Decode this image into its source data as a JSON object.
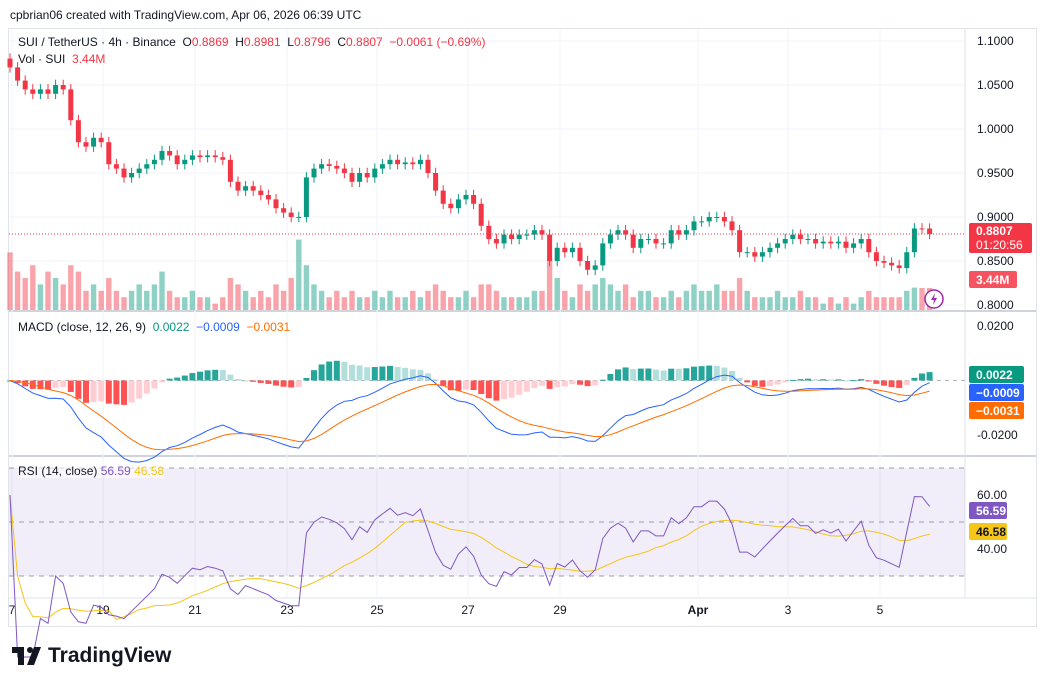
{
  "header": {
    "credit": "cpbrian06 created with TradingView.com, Apr 06, 2026 06:39 UTC"
  },
  "legend": {
    "symbol": "SUI / TetherUS · 4h · Binance",
    "o_label": "O",
    "o": "0.8869",
    "h_label": "H",
    "h": "0.8981",
    "l_label": "L",
    "l": "0.8796",
    "c_label": "C",
    "c": "0.8807",
    "change": "−0.0061 (−0.69%)",
    "vol_label": "Vol · SUI",
    "vol": "3.44M",
    "macd_label": "MACD (close, 12, 26, 9)",
    "macd_hist": "0.0022",
    "macd_line": "−0.0009",
    "macd_signal": "−0.0031",
    "rsi_label": "RSI (14, close)",
    "rsi": "56.59",
    "rsi_ma": "46.58"
  },
  "badges": {
    "price": "0.8807",
    "countdown": "01:20:56",
    "vol": "3.44M",
    "macd_hist": "0.0022",
    "macd_line": "−0.0009",
    "macd_signal": "−0.0031",
    "rsi": "56.59",
    "rsi_ma": "46.58"
  },
  "colors": {
    "up": "#089981",
    "down": "#f23645",
    "macd": "#2962ff",
    "signal": "#ff6d00",
    "rsi": "#7e57c2",
    "rsi_ma": "#f5c518"
  },
  "watermark": "TradingView",
  "chart_data": {
    "type": "candlestick",
    "interval": "4h",
    "price_axis": {
      "ticks": [
        "1.1000",
        "1.0500",
        "1.0000",
        "0.9500",
        "0.9000",
        "0.8500",
        "0.8000"
      ],
      "ylim": [
        0.79,
        1.1125
      ]
    },
    "macd_axis": {
      "ticks": [
        "0.0200",
        "-0.0200"
      ],
      "ylim": [
        -0.025,
        0.025
      ]
    },
    "rsi_axis": {
      "ticks": [
        "60.00",
        "40.00"
      ],
      "bands": [
        70,
        50,
        30
      ]
    },
    "x_ticks": [
      "7",
      "19",
      "21",
      "23",
      "25",
      "27",
      "29",
      "Apr",
      "3",
      "5"
    ],
    "closes": [
      1.07,
      1.055,
      1.045,
      1.04,
      1.045,
      1.04,
      1.05,
      1.045,
      1.01,
      0.985,
      0.98,
      0.99,
      0.985,
      0.96,
      0.955,
      0.945,
      0.95,
      0.955,
      0.96,
      0.965,
      0.975,
      0.97,
      0.96,
      0.965,
      0.97,
      0.968,
      0.97,
      0.968,
      0.965,
      0.94,
      0.93,
      0.935,
      0.93,
      0.925,
      0.92,
      0.91,
      0.905,
      0.9,
      0.9,
      0.945,
      0.955,
      0.96,
      0.958,
      0.955,
      0.95,
      0.94,
      0.95,
      0.945,
      0.955,
      0.96,
      0.965,
      0.96,
      0.962,
      0.96,
      0.965,
      0.95,
      0.93,
      0.915,
      0.91,
      0.92,
      0.925,
      0.915,
      0.89,
      0.875,
      0.87,
      0.88,
      0.875,
      0.88,
      0.88,
      0.885,
      0.88,
      0.85,
      0.865,
      0.86,
      0.865,
      0.85,
      0.84,
      0.845,
      0.87,
      0.88,
      0.885,
      0.88,
      0.865,
      0.875,
      0.875,
      0.87,
      0.87,
      0.885,
      0.88,
      0.885,
      0.895,
      0.895,
      0.9,
      0.9,
      0.895,
      0.885,
      0.86,
      0.86,
      0.855,
      0.86,
      0.865,
      0.87,
      0.875,
      0.88,
      0.875,
      0.875,
      0.87,
      0.872,
      0.87,
      0.872,
      0.865,
      0.87,
      0.875,
      0.86,
      0.85,
      0.848,
      0.845,
      0.842,
      0.86,
      0.887,
      0.8869,
      0.8807
    ],
    "volume_m": [
      9,
      6,
      5,
      7,
      4,
      6,
      5,
      4,
      7,
      6,
      3,
      4,
      3,
      5,
      3,
      2,
      3,
      4,
      3,
      4,
      6,
      3,
      2,
      2,
      3,
      2,
      2,
      1,
      2,
      5,
      4,
      3,
      2,
      3,
      2,
      4,
      3,
      5,
      11,
      7,
      4,
      3,
      2,
      3,
      2,
      3,
      2,
      2,
      3,
      2,
      3,
      2,
      2,
      3,
      2,
      3,
      4,
      3,
      2,
      2,
      3,
      2,
      4,
      4,
      3,
      2,
      2,
      2,
      2,
      3,
      3,
      8,
      5,
      3,
      2,
      4,
      3,
      4,
      5,
      4,
      3,
      4,
      2,
      3,
      3,
      2,
      2,
      3,
      2,
      3,
      4,
      3,
      3,
      4,
      3,
      3,
      5,
      3,
      2,
      2,
      2,
      3,
      2,
      2,
      3,
      2,
      2,
      1,
      2,
      1,
      2,
      1,
      2,
      3,
      2,
      2,
      2,
      2,
      3,
      3.5,
      3.44,
      3.44
    ]
  }
}
